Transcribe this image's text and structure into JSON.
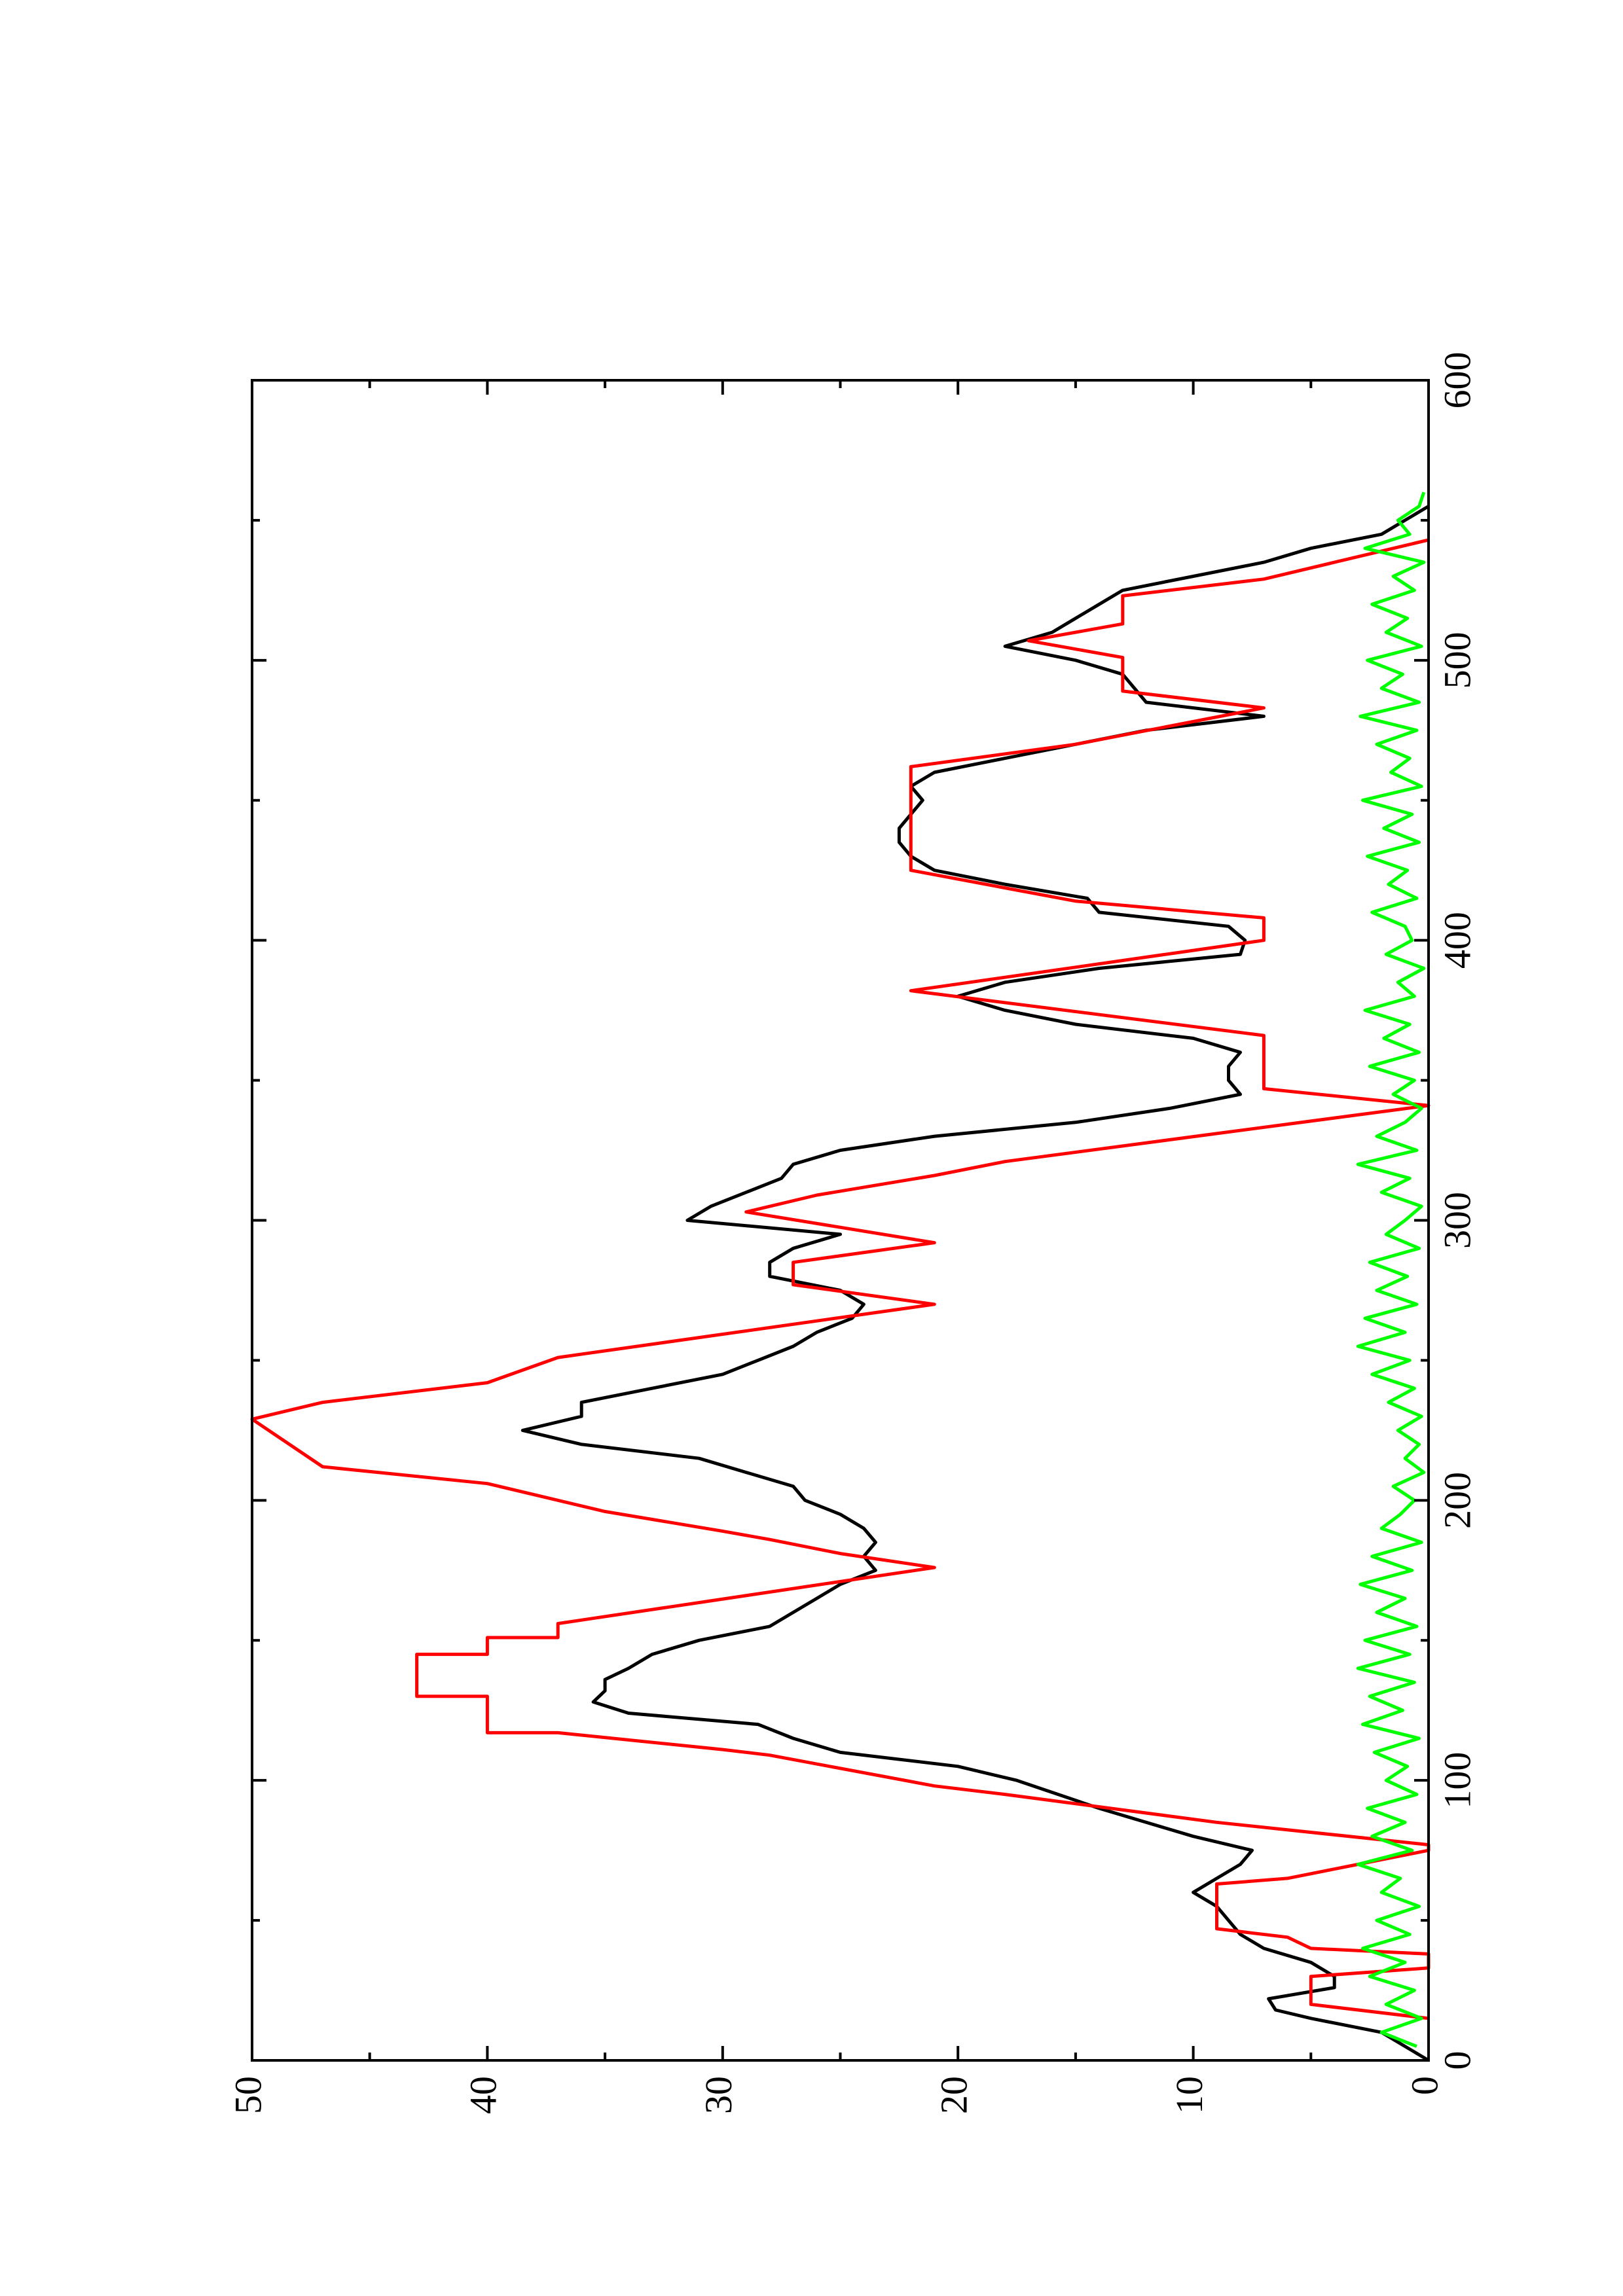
{
  "chart_data": {
    "type": "line",
    "xlim": [
      0,
      600
    ],
    "xticks": [
      0,
      100,
      200,
      300,
      400,
      500,
      600
    ],
    "xminorticks": [
      50,
      150,
      250,
      350,
      450,
      550
    ],
    "ylim": [
      0,
      50
    ],
    "yticks": [
      0,
      10,
      20,
      30,
      40,
      50
    ],
    "yminorticks": [
      5,
      15,
      25,
      35,
      45
    ],
    "rotated": true,
    "series": [
      {
        "color": "#000000",
        "x": [
          0,
          5,
          10,
          15,
          18,
          22,
          26,
          30,
          35,
          40,
          45,
          50,
          55,
          60,
          65,
          70,
          75,
          80,
          90,
          100,
          105,
          110,
          115,
          120,
          124,
          128,
          132,
          136,
          140,
          145,
          150,
          155,
          160,
          165,
          170,
          175,
          180,
          185,
          190,
          195,
          200,
          205,
          210,
          215,
          220,
          225,
          230,
          235,
          240,
          245,
          250,
          255,
          260,
          265,
          270,
          275,
          280,
          285,
          290,
          295,
          300,
          305,
          310,
          315,
          320,
          325,
          330,
          335,
          340,
          345,
          350,
          355,
          360,
          365,
          370,
          375,
          380,
          385,
          390,
          395,
          400,
          405,
          410,
          415,
          420,
          425,
          430,
          435,
          440,
          445,
          450,
          455,
          460,
          465,
          470,
          475,
          480,
          485,
          490,
          495,
          500,
          505,
          510,
          515,
          520,
          525,
          530,
          535,
          540,
          545,
          550,
          555
        ],
        "values": [
          0,
          1,
          2,
          5,
          6.5,
          6.8,
          4,
          4,
          5,
          7,
          8,
          8.5,
          9,
          10,
          9,
          8,
          7.5,
          10,
          14,
          17.5,
          20,
          25,
          27,
          28.5,
          34,
          35.5,
          35,
          35,
          34,
          33,
          31,
          28,
          27,
          26,
          25,
          23.5,
          24,
          23.5,
          24,
          25,
          26.5,
          27,
          29,
          31,
          36,
          38.5,
          36,
          36,
          33,
          30,
          28.5,
          27,
          26,
          24.5,
          24,
          25,
          28,
          28,
          27,
          25,
          31.5,
          30.5,
          29,
          27.5,
          27,
          25,
          21,
          15,
          11,
          8,
          8.5,
          8.5,
          8,
          10,
          15,
          18,
          20,
          18,
          14,
          8,
          7.8,
          8.5,
          14,
          14.5,
          18,
          21,
          22,
          22.5,
          22.5,
          22,
          21.5,
          22,
          21,
          18,
          15,
          12,
          7,
          12,
          12.5,
          13,
          15,
          18,
          16,
          15,
          14,
          13,
          10,
          7,
          5,
          2,
          1,
          0
        ]
      },
      {
        "color": "#ff0000",
        "x": [
          15,
          20,
          30,
          33,
          38,
          40,
          44,
          47,
          63,
          65,
          70,
          75,
          77,
          85,
          95,
          98,
          109,
          111,
          117,
          117,
          130,
          130,
          145,
          145,
          151,
          151,
          156,
          176,
          181,
          186,
          189,
          196,
          200,
          206,
          212,
          229,
          235,
          242,
          251,
          270,
          277,
          285,
          292,
          303,
          309,
          316,
          321,
          331,
          341,
          347,
          366,
          382,
          400,
          408,
          414,
          425,
          462,
          470,
          483,
          489,
          501,
          507,
          513,
          523,
          529,
          543
        ],
        "values": [
          0,
          5,
          5,
          0,
          0,
          5,
          6,
          9,
          9,
          6,
          3,
          0,
          0,
          9,
          18,
          21,
          28,
          30,
          37,
          40,
          40,
          43,
          43,
          40,
          40,
          37,
          37,
          21,
          25,
          28,
          30,
          35,
          37,
          40,
          47,
          50,
          47,
          40,
          37,
          21,
          27,
          27,
          21,
          29,
          26,
          21,
          18,
          9,
          0,
          7,
          7,
          22,
          7,
          7,
          15,
          22,
          22,
          15,
          7,
          13,
          13,
          17,
          13,
          13,
          7,
          0
        ]
      },
      {
        "color": "#00ff00",
        "x": [
          5,
          10,
          15,
          20,
          25,
          30,
          35,
          40,
          45,
          50,
          55,
          60,
          65,
          70,
          75,
          80,
          85,
          90,
          95,
          100,
          105,
          110,
          115,
          120,
          125,
          130,
          135,
          140,
          145,
          150,
          155,
          160,
          165,
          170,
          175,
          180,
          185,
          190,
          195,
          200,
          205,
          210,
          215,
          220,
          225,
          230,
          235,
          240,
          245,
          250,
          255,
          260,
          265,
          270,
          275,
          280,
          285,
          290,
          295,
          300,
          305,
          310,
          315,
          320,
          325,
          330,
          335,
          340,
          345,
          350,
          355,
          360,
          365,
          370,
          375,
          380,
          385,
          390,
          395,
          400,
          405,
          410,
          415,
          420,
          425,
          430,
          435,
          440,
          445,
          450,
          455,
          460,
          465,
          470,
          475,
          480,
          485,
          490,
          495,
          500,
          505,
          510,
          515,
          520,
          525,
          530,
          535,
          540,
          545,
          550,
          555,
          560
        ],
        "values": [
          0.5,
          2,
          0.3,
          1.8,
          0.6,
          2.5,
          1,
          2.8,
          0.8,
          2.2,
          0.4,
          2,
          1.2,
          3,
          0.7,
          2.4,
          1,
          2.6,
          0.5,
          1.8,
          0.9,
          2.3,
          0.4,
          2.8,
          1.1,
          2.5,
          0.6,
          3,
          0.8,
          2.7,
          0.5,
          2.2,
          1,
          2.9,
          0.7,
          2.4,
          0.3,
          2,
          1.2,
          0.6,
          1.5,
          0.2,
          1,
          0.4,
          1.3,
          0.3,
          1.7,
          0.6,
          2.4,
          0.8,
          3,
          1,
          2.7,
          0.5,
          2.2,
          0.9,
          2.5,
          0.4,
          1.8,
          1,
          0.3,
          2,
          0.8,
          3,
          0.5,
          2.2,
          1,
          0.3,
          1.5,
          0.6,
          2.5,
          0.4,
          1.9,
          0.8,
          2.7,
          0.6,
          1.3,
          0.2,
          1.8,
          0.7,
          1,
          2.4,
          0.5,
          1.7,
          0.9,
          2.6,
          0.4,
          1.9,
          0.7,
          2.8,
          0.3,
          1.6,
          0.8,
          2.2,
          0.5,
          2.9,
          0.4,
          2,
          1.1,
          2.6,
          0.3,
          1.8,
          0.9,
          2.4,
          0.6,
          1.5,
          0.2,
          2.7,
          0.8,
          1.3,
          0.4,
          0.2
        ]
      }
    ]
  }
}
